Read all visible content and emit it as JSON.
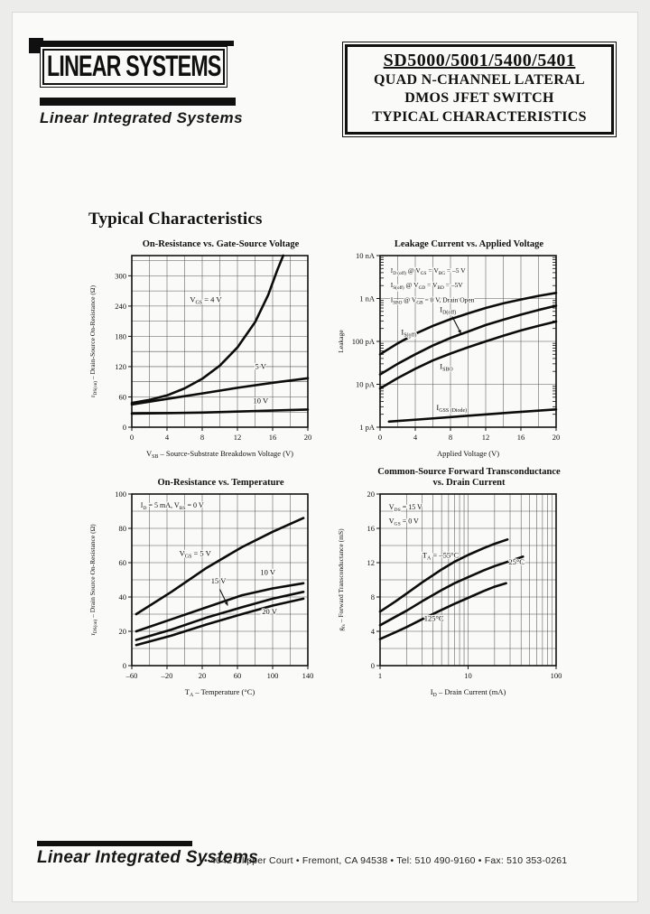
{
  "header": {
    "logo_text": "LINEAR SYSTEMS",
    "logo_subtitle": "Linear Integrated Systems",
    "title_box": {
      "part_numbers": "SD5000/5001/5400/5401",
      "line2": "QUAD N-CHANNEL LATERAL",
      "line3": "DMOS JFET SWITCH",
      "line4": "TYPICAL CHARACTERISTICS"
    }
  },
  "section_heading": "Typical Characteristics",
  "footer": {
    "brand": "Linear Integrated Systems",
    "address": "•  4042 Clipper Court  •  Fremont, CA 94538  •  Tel: 510 490-9160  •  Fax: 510 353-0261"
  },
  "chart_data": [
    {
      "type": "line",
      "title": "On-Resistance vs. Gate-Source Voltage",
      "title2": null,
      "xlabel": "V~SB~ – Source-Substrate Breakdown Voltage (V)",
      "ylabel": "r~DS(on)~ – Drain-Source On-Resistance (Ω)",
      "xscale": "linear",
      "yscale": "linear",
      "xlim": [
        0,
        20
      ],
      "ylim": [
        0,
        340
      ],
      "xticks": [
        {
          "v": 0,
          "label": "0"
        },
        {
          "v": 4,
          "label": "4"
        },
        {
          "v": 8,
          "label": "8"
        },
        {
          "v": 12,
          "label": "12"
        },
        {
          "v": 16,
          "label": "16"
        },
        {
          "v": 20,
          "label": "20"
        }
      ],
      "yticks": [
        {
          "v": 0,
          "label": "0"
        },
        {
          "v": 60,
          "label": "60"
        },
        {
          "v": 120,
          "label": "120"
        },
        {
          "v": 180,
          "label": "180"
        },
        {
          "v": 240,
          "label": "240"
        },
        {
          "v": 300,
          "label": "300"
        }
      ],
      "xgrid": [
        2,
        4,
        6,
        8,
        10,
        12,
        14,
        16,
        18
      ],
      "ygrid": [
        30,
        60,
        90,
        120,
        150,
        180,
        210,
        240,
        270,
        300,
        330
      ],
      "series": [
        {
          "name": "VGS = 4 V",
          "points": [
            [
              0,
              48
            ],
            [
              2,
              54
            ],
            [
              4,
              63
            ],
            [
              6,
              77
            ],
            [
              8,
              96
            ],
            [
              10,
              122
            ],
            [
              12,
              158
            ],
            [
              14,
              208
            ],
            [
              15.5,
              262
            ],
            [
              16.5,
              310
            ],
            [
              17.2,
              340
            ]
          ]
        },
        {
          "name": "VGS = 5 V",
          "points": [
            [
              0,
              45
            ],
            [
              4,
              56
            ],
            [
              8,
              67
            ],
            [
              12,
              78
            ],
            [
              16,
              88
            ],
            [
              20,
              97
            ]
          ]
        },
        {
          "name": "VGS = 10 V",
          "points": [
            [
              0,
              27
            ],
            [
              4,
              28
            ],
            [
              8,
              29
            ],
            [
              12,
              31
            ],
            [
              16,
              33
            ],
            [
              20,
              35
            ]
          ]
        }
      ],
      "labels": [
        {
          "t": "V~GS~ = 4 V",
          "fx": 0.33,
          "fy": 0.27
        },
        {
          "t": "5 V",
          "fx": 0.7,
          "fy": 0.66
        },
        {
          "t": "10 V",
          "fx": 0.69,
          "fy": 0.86
        }
      ],
      "arrows": []
    },
    {
      "type": "line",
      "title": "Leakage Current vs. Applied Voltage",
      "title2": null,
      "xlabel": "Applied Voltage (V)",
      "ylabel": "Leakage",
      "xscale": "linear",
      "yscale": "log",
      "xlim": [
        0,
        20
      ],
      "ylim": [
        1e-12,
        1e-08
      ],
      "yminor_ticks": true,
      "xticks": [
        {
          "v": 0,
          "label": "0"
        },
        {
          "v": 4,
          "label": "4"
        },
        {
          "v": 8,
          "label": "8"
        },
        {
          "v": 12,
          "label": "12"
        },
        {
          "v": 16,
          "label": "16"
        },
        {
          "v": 20,
          "label": "20"
        }
      ],
      "yticks": [
        {
          "v": 1e-08,
          "label": "10 nA"
        },
        {
          "v": 1e-09,
          "label": "1 nA"
        },
        {
          "v": 1e-10,
          "label": "100 pA"
        },
        {
          "v": 1e-11,
          "label": "10 pA"
        },
        {
          "v": 1e-12,
          "label": "1 pA"
        }
      ],
      "xgrid": [
        2,
        4,
        6,
        8,
        10,
        12,
        14,
        16,
        18
      ],
      "ygrid": [
        1e-09,
        1e-10,
        1e-11
      ],
      "series": [
        {
          "name": "ID(off)",
          "points": [
            [
              0,
              5e-11
            ],
            [
              2,
              9e-11
            ],
            [
              4,
              1.5e-10
            ],
            [
              6,
              2.3e-10
            ],
            [
              8,
              3.3e-10
            ],
            [
              10,
              4.5e-10
            ],
            [
              12,
              6e-10
            ],
            [
              14,
              7.7e-10
            ],
            [
              16,
              9.5e-10
            ],
            [
              18,
              1.15e-09
            ],
            [
              20,
              1.35e-09
            ]
          ]
        },
        {
          "name": "IS(off)",
          "points": [
            [
              0,
              1.7e-11
            ],
            [
              2,
              3e-11
            ],
            [
              4,
              5e-11
            ],
            [
              6,
              8e-11
            ],
            [
              8,
              1.2e-10
            ],
            [
              10,
              1.7e-10
            ],
            [
              12,
              2.4e-10
            ],
            [
              14,
              3.2e-10
            ],
            [
              16,
              4.2e-10
            ],
            [
              18,
              5.4e-10
            ],
            [
              20,
              6.8e-10
            ]
          ]
        },
        {
          "name": "ISBO",
          "points": [
            [
              0,
              8e-12
            ],
            [
              2,
              1.4e-11
            ],
            [
              4,
              2.3e-11
            ],
            [
              6,
              3.6e-11
            ],
            [
              8,
              5.2e-11
            ],
            [
              10,
              7.3e-11
            ],
            [
              12,
              1e-10
            ],
            [
              14,
              1.35e-10
            ],
            [
              16,
              1.8e-10
            ],
            [
              18,
              2.3e-10
            ],
            [
              20,
              2.9e-10
            ]
          ]
        },
        {
          "name": "IGSS (Diode)",
          "points": [
            [
              1,
              1.35e-12
            ],
            [
              5,
              1.55e-12
            ],
            [
              10,
              1.85e-12
            ],
            [
              15,
              2.2e-12
            ],
            [
              20,
              2.6e-12
            ]
          ]
        }
      ],
      "labels": [
        {
          "t": "I~D (off)~ @ V~GS~ = V~BG~ = –5 V",
          "fx": 0.06,
          "fy": 0.1,
          "size": 7.5
        },
        {
          "t": "I~S(off)~ @ V~GD~ = V~BD~ = –5V",
          "fx": 0.06,
          "fy": 0.185,
          "size": 7.5
        },
        {
          "t": "I~SBO~ @ V~GB~ = 0 V, Drain Open",
          "fx": 0.06,
          "fy": 0.27,
          "size": 7.5
        },
        {
          "t": "I~D(off)~",
          "fx": 0.34,
          "fy": 0.33
        },
        {
          "t": "I~S(off)~",
          "fx": 0.12,
          "fy": 0.46
        },
        {
          "t": "I~SBO~",
          "fx": 0.34,
          "fy": 0.66
        },
        {
          "t": "I~GSS (Diode)~",
          "fx": 0.32,
          "fy": 0.9
        }
      ],
      "arrows": [
        {
          "fx1": 0.41,
          "fy1": 0.355,
          "fx2": 0.46,
          "fy2": 0.455
        }
      ]
    },
    {
      "type": "line",
      "title": "On-Resistance vs. Temperature",
      "title2": null,
      "xlabel": "T~A~ – Temperature (°C)",
      "ylabel": "r~DS(on)~ – Drain Source On-Resistance (Ω)",
      "xscale": "linear",
      "yscale": "linear",
      "xlim": [
        -60,
        140
      ],
      "ylim": [
        0,
        100
      ],
      "xticks": [
        {
          "v": -60,
          "label": "–60"
        },
        {
          "v": -20,
          "label": "–20"
        },
        {
          "v": 20,
          "label": "20"
        },
        {
          "v": 60,
          "label": "60"
        },
        {
          "v": 100,
          "label": "100"
        },
        {
          "v": 140,
          "label": "140"
        }
      ],
      "yticks": [
        {
          "v": 0,
          "label": "0"
        },
        {
          "v": 20,
          "label": "20"
        },
        {
          "v": 40,
          "label": "40"
        },
        {
          "v": 60,
          "label": "60"
        },
        {
          "v": 80,
          "label": "80"
        },
        {
          "v": 100,
          "label": "100"
        }
      ],
      "xgrid": [
        -40,
        -20,
        0,
        20,
        40,
        60,
        80,
        100,
        120
      ],
      "ygrid": [
        10,
        20,
        30,
        40,
        50,
        60,
        70,
        80,
        90
      ],
      "series": [
        {
          "name": "VGS = 5 V",
          "points": [
            [
              -55,
              30
            ],
            [
              -15,
              43
            ],
            [
              25,
              57
            ],
            [
              65,
              69
            ],
            [
              100,
              78
            ],
            [
              135,
              86
            ]
          ]
        },
        {
          "name": "VGS = 10 V",
          "points": [
            [
              -55,
              20
            ],
            [
              -15,
              27
            ],
            [
              25,
              34
            ],
            [
              65,
              41
            ],
            [
              100,
              45
            ],
            [
              135,
              48
            ]
          ]
        },
        {
          "name": "VGS = 15 V",
          "points": [
            [
              -55,
              15
            ],
            [
              -15,
              21
            ],
            [
              25,
              28
            ],
            [
              65,
              34
            ],
            [
              100,
              39
            ],
            [
              135,
              43
            ]
          ]
        },
        {
          "name": "VGS = 20 V",
          "points": [
            [
              -55,
              12
            ],
            [
              -15,
              17.5
            ],
            [
              25,
              24
            ],
            [
              65,
              30
            ],
            [
              100,
              35
            ],
            [
              135,
              39
            ]
          ]
        }
      ],
      "labels": [
        {
          "t": "I~D~ = 5 mA, V~BS~ = 0 V",
          "fx": 0.05,
          "fy": 0.08,
          "size": 8
        },
        {
          "t": "V~GS~ = 5 V",
          "fx": 0.27,
          "fy": 0.36
        },
        {
          "t": "15 V",
          "fx": 0.45,
          "fy": 0.52
        },
        {
          "t": "10 V",
          "fx": 0.73,
          "fy": 0.47
        },
        {
          "t": "20 V",
          "fx": 0.74,
          "fy": 0.7
        }
      ],
      "arrows": [
        {
          "fx1": 0.5,
          "fy1": 0.555,
          "fx2": 0.545,
          "fy2": 0.65
        }
      ]
    },
    {
      "type": "line",
      "title": "Common-Source Forward Transconductance",
      "title2": "vs. Drain Current",
      "xlabel": "I~D~ – Drain Current (mA)",
      "ylabel": "g~fs~ – Forward Transconductance (mS)",
      "xscale": "log",
      "yscale": "linear",
      "xlim": [
        1,
        100
      ],
      "ylim": [
        0,
        20
      ],
      "xminor_lines": true,
      "xticks": [
        {
          "v": 1,
          "label": "1"
        },
        {
          "v": 10,
          "label": "10"
        },
        {
          "v": 100,
          "label": "100"
        }
      ],
      "yticks": [
        {
          "v": 0,
          "label": "0"
        },
        {
          "v": 4,
          "label": "4"
        },
        {
          "v": 8,
          "label": "8"
        },
        {
          "v": 12,
          "label": "12"
        },
        {
          "v": 16,
          "label": "16"
        },
        {
          "v": 20,
          "label": "20"
        }
      ],
      "xgrid": [
        10
      ],
      "ygrid": [
        2,
        4,
        6,
        8,
        10,
        12,
        14,
        16,
        18
      ],
      "series": [
        {
          "name": "TA = -55 C",
          "points": [
            [
              1,
              6.3
            ],
            [
              1.5,
              7.5
            ],
            [
              2,
              8.4
            ],
            [
              3,
              9.7
            ],
            [
              5,
              11.2
            ],
            [
              7,
              12.1
            ],
            [
              10,
              12.9
            ],
            [
              15,
              13.7
            ],
            [
              20,
              14.2
            ],
            [
              28,
              14.7
            ]
          ]
        },
        {
          "name": "TA = 25 C",
          "points": [
            [
              1,
              4.7
            ],
            [
              1.5,
              5.7
            ],
            [
              2,
              6.4
            ],
            [
              3,
              7.5
            ],
            [
              5,
              8.8
            ],
            [
              7,
              9.6
            ],
            [
              10,
              10.3
            ],
            [
              15,
              11.1
            ],
            [
              20,
              11.6
            ],
            [
              30,
              12.2
            ],
            [
              42,
              12.7
            ]
          ]
        },
        {
          "name": "TA = 125 C",
          "points": [
            [
              1,
              3.1
            ],
            [
              1.5,
              3.9
            ],
            [
              2,
              4.5
            ],
            [
              3,
              5.4
            ],
            [
              5,
              6.5
            ],
            [
              7,
              7.2
            ],
            [
              10,
              7.9
            ],
            [
              15,
              8.7
            ],
            [
              20,
              9.2
            ],
            [
              27,
              9.6
            ]
          ]
        }
      ],
      "labels": [
        {
          "t": "V~DS~ = 15 V",
          "fx": 0.05,
          "fy": 0.09,
          "size": 8
        },
        {
          "t": "V~GS~ = 0 V",
          "fx": 0.05,
          "fy": 0.17,
          "size": 8
        },
        {
          "t": "T~A~ = –55°C",
          "fx": 0.24,
          "fy": 0.37
        },
        {
          "t": "25°C",
          "fx": 0.73,
          "fy": 0.41
        },
        {
          "t": "125°C",
          "fx": 0.25,
          "fy": 0.74
        }
      ],
      "arrows": []
    }
  ]
}
